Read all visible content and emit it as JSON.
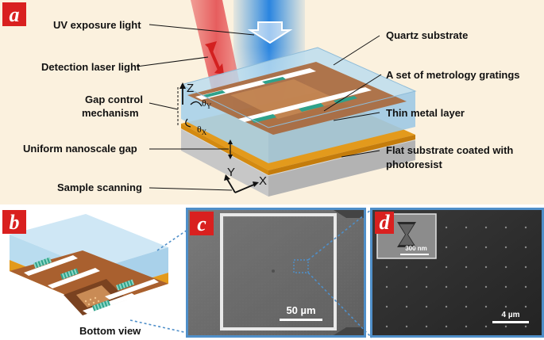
{
  "panels": {
    "a": {
      "badge": "a",
      "labels": {
        "uv": "UV exposure light",
        "laser": "Detection laser light",
        "gap_control_1": "Gap control",
        "gap_control_2": "mechanism",
        "gap": "Uniform nanoscale gap",
        "scan": "Sample scanning",
        "quartz": "Quartz substrate",
        "gratings": "A set of metrology gratings",
        "metal": "Thin metal layer",
        "flat_1": "Flat substrate coated with",
        "flat_2": "photoresist"
      },
      "axes": {
        "z": "Z",
        "x": "X",
        "y": "Y",
        "theta_y": "θ",
        "theta_y_sub": "Y",
        "theta_x": "θ",
        "theta_x_sub": "X"
      }
    },
    "b": {
      "badge": "b",
      "caption": "Bottom view"
    },
    "c": {
      "badge": "c",
      "scale_bar": "50 µm"
    },
    "d": {
      "badge": "d",
      "scale_bar": "4 µm",
      "inset_scale_bar": "300 nm"
    }
  },
  "colors": {
    "badge_red": "#d9201f",
    "panel_a_bg": "#fbf1de",
    "panel_border": "#4f8fc9",
    "quartz": "#b9dcef",
    "metal_brown": "#a9602f",
    "metal_orange": "#e39a1c",
    "grating_green": "#2ea28b",
    "uv_blue": "#2e8fe0",
    "laser_red": "#e8595a",
    "sem_gray": "#6e6e6e",
    "sem_dark": "#2b2b2b"
  }
}
